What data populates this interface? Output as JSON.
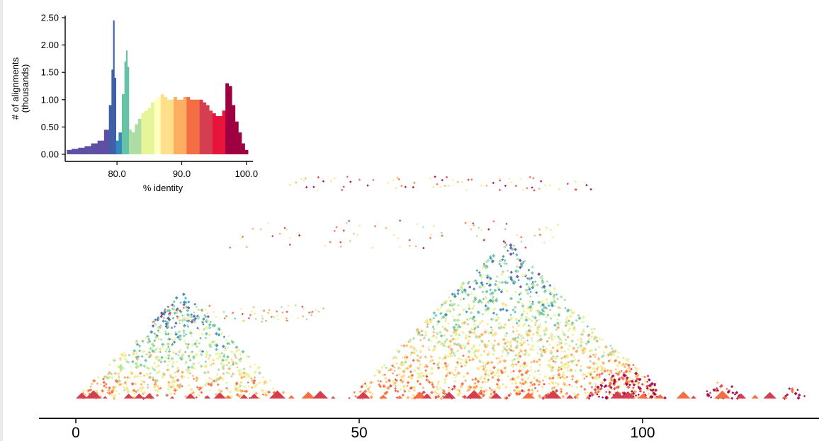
{
  "chart_data": [
    {
      "type": "bar",
      "title": "",
      "xlabel": "% identity",
      "ylabel": "# of alignments (thousands)",
      "ylabel_lines": [
        "# of alignments",
        "(thousands)"
      ],
      "xlim": [
        72,
        101
      ],
      "ylim": [
        0,
        2.5
      ],
      "x_ticks": [
        80.0,
        90.0,
        100.0
      ],
      "x_tick_labels": [
        "80.0",
        "90.0",
        "100.0"
      ],
      "y_ticks": [
        0,
        0.5,
        1.0,
        1.5,
        2.0,
        2.5
      ],
      "y_tick_labels": [
        "0.00",
        "0.50",
        "1.00",
        "1.50",
        "2.00",
        "2.50"
      ],
      "grid": false,
      "legend": "none",
      "bin_edges": [
        72,
        79,
        80,
        81,
        82,
        84,
        86,
        87,
        89,
        91,
        93,
        95,
        97,
        100
      ],
      "bin_colors": [
        "#5e4fa2",
        "#3e5fa8",
        "#3288bd",
        "#66c2a5",
        "#abdda4",
        "#e6f598",
        "#ffffbf",
        "#fee08b",
        "#fdae61",
        "#f46d43",
        "#d53e4f",
        "#e8143c",
        "#9e0142"
      ],
      "x": [
        72.5,
        73.5,
        74.5,
        75.5,
        76.5,
        77.5,
        78.5,
        79.0,
        79.3,
        79.5,
        79.7,
        80.0,
        80.5,
        81.0,
        81.3,
        81.5,
        81.7,
        82.0,
        82.5,
        83.0,
        83.5,
        84.0,
        84.5,
        85.0,
        85.5,
        86.0,
        86.5,
        87.0,
        87.5,
        88.0,
        88.5,
        89.0,
        89.5,
        90.0,
        90.5,
        91.0,
        91.5,
        92.0,
        92.5,
        93.0,
        93.5,
        94.0,
        94.5,
        95.0,
        95.5,
        96.0,
        96.5,
        97.0,
        97.5,
        98.0,
        98.5,
        99.0,
        99.5,
        100.0
      ],
      "y": [
        0.08,
        0.1,
        0.12,
        0.15,
        0.2,
        0.25,
        0.45,
        0.9,
        1.55,
        2.45,
        1.4,
        0.25,
        0.4,
        1.1,
        1.7,
        1.9,
        1.6,
        0.45,
        0.4,
        0.55,
        0.65,
        0.75,
        0.8,
        0.85,
        0.95,
        1.0,
        1.05,
        1.1,
        1.05,
        1.0,
        1.0,
        1.05,
        1.0,
        1.0,
        1.05,
        1.05,
        1.0,
        1.0,
        1.0,
        1.0,
        0.95,
        0.9,
        0.8,
        0.75,
        0.7,
        0.7,
        0.8,
        1.3,
        1.25,
        0.9,
        0.6,
        0.4,
        0.2,
        0.08
      ]
    },
    {
      "type": "heatmap",
      "title": "",
      "xlabel": "",
      "ylabel": "",
      "xlim": [
        0,
        130
      ],
      "x_ticks": [
        0,
        50,
        100
      ],
      "x_tick_labels": [
        "0",
        "50",
        "100"
      ],
      "grid": false,
      "legend": "none",
      "color_scale": "% identity (spectral)",
      "regions": [
        {
          "start": 0,
          "end": 38,
          "identity": 84
        },
        {
          "start": 48,
          "end": 104,
          "identity": 85
        },
        {
          "start": 90,
          "end": 105,
          "identity": 96
        },
        {
          "start": 110,
          "end": 118,
          "identity": 97
        },
        {
          "start": 124,
          "end": 129,
          "identity": 99
        }
      ],
      "diagonal_bands": [
        {
          "center": 30,
          "width": 6,
          "identity": 88
        },
        {
          "center": 58,
          "width": 10,
          "identity": 91
        },
        {
          "center": 76,
          "width": 5,
          "identity": 93
        }
      ]
    }
  ]
}
